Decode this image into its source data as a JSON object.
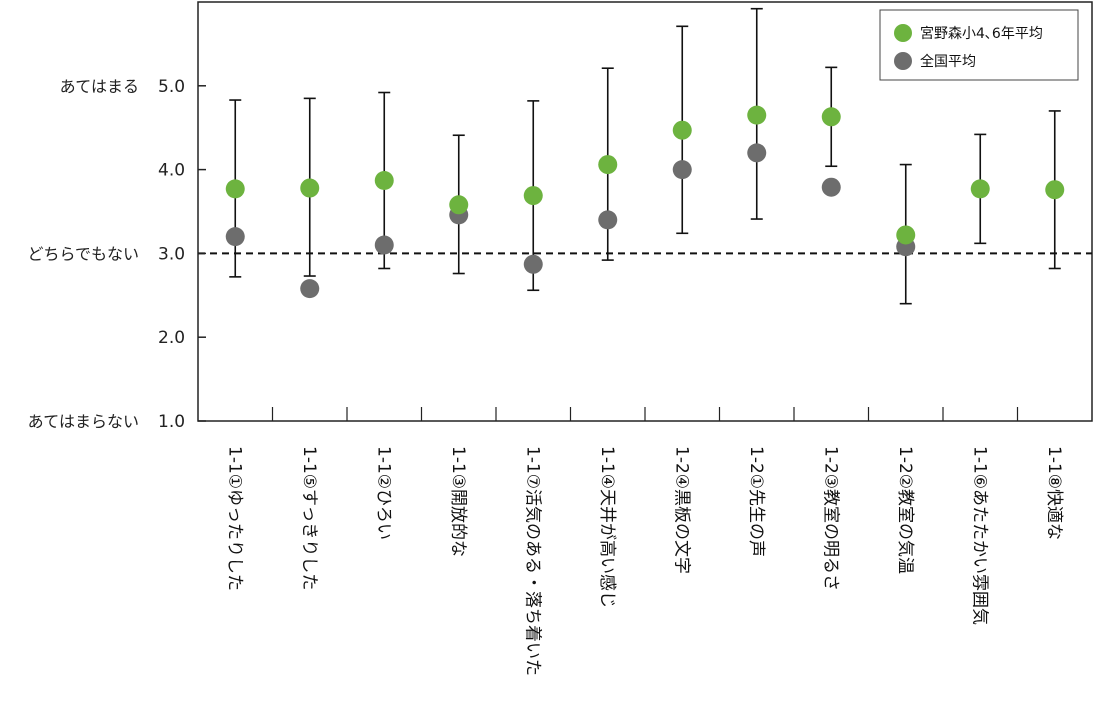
{
  "chart_data": {
    "type": "scatter",
    "title": "",
    "xlabel": "",
    "ylabel": "",
    "ylim": [
      1.0,
      6.0
    ],
    "yticks": [
      {
        "value": 1.0,
        "label": "1.0"
      },
      {
        "value": 2.0,
        "label": "2.0"
      },
      {
        "value": 3.0,
        "label": "3.0"
      },
      {
        "value": 4.0,
        "label": "4.0"
      },
      {
        "value": 5.0,
        "label": "5.0"
      }
    ],
    "scale_labels": [
      {
        "value": 5.0,
        "label": "あてはまる"
      },
      {
        "value": 3.0,
        "label": "どちらでもない"
      },
      {
        "value": 1.0,
        "label": "あてはまらない"
      }
    ],
    "reference_line": {
      "value": 3.0,
      "style": "dashed"
    },
    "categories": [
      "1-1①ゆったりした",
      "1-1⑤すっきりした",
      "1-1②ひろい",
      "1-1③開放的な",
      "1-1⑦活気のある・落ち着いた",
      "1-1④天井が高い感じ",
      "1-2④黒板の文字",
      "1-2①先生の声",
      "1-2③教室の明るさ",
      "1-2②教室の気温",
      "1-1⑥あたたかい雰囲気",
      "1-1⑧快適な"
    ],
    "series": [
      {
        "name": "宮野森小4､6年平均",
        "color": "#6db33f",
        "values": [
          3.77,
          3.78,
          3.87,
          3.58,
          3.69,
          4.06,
          4.47,
          4.65,
          4.63,
          3.22,
          3.77,
          3.76
        ]
      },
      {
        "name": "全国平均",
        "color": "#6d6d6d",
        "values": [
          3.2,
          2.58,
          3.1,
          3.46,
          2.87,
          3.4,
          4.0,
          4.2,
          3.79,
          3.08,
          null,
          null
        ]
      }
    ],
    "error_bars": {
      "low": [
        2.72,
        2.73,
        2.82,
        2.76,
        2.56,
        2.92,
        3.24,
        3.41,
        4.04,
        2.4,
        3.12,
        2.82
      ],
      "high": [
        4.83,
        4.85,
        4.92,
        4.41,
        4.82,
        5.21,
        5.71,
        5.92,
        5.22,
        4.06,
        4.42,
        4.7
      ]
    },
    "grid": false,
    "legend_position": "top-right"
  }
}
